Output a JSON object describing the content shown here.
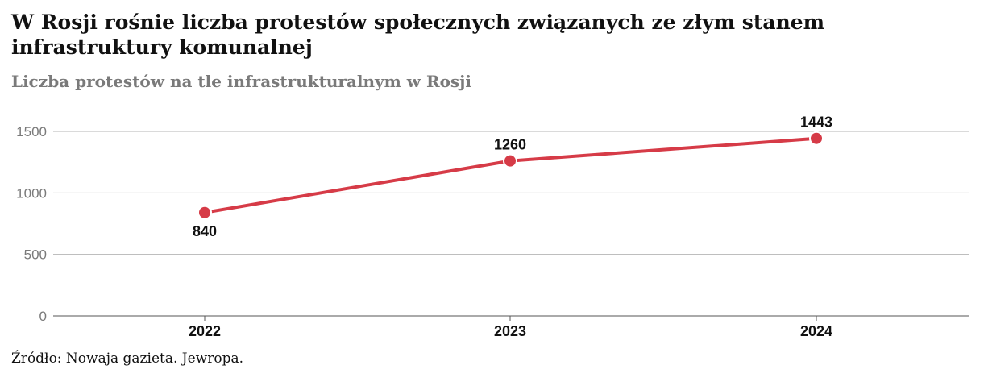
{
  "header": {
    "title": "W Rosji rośnie liczba protestów społecznych związanych ze złym stanem infrastruktury komunalnej",
    "subtitle": "Liczba protestów na tle infrastrukturalnym w Rosji"
  },
  "footer": {
    "source": "Źródło: Nowaja gazieta. Jewropa."
  },
  "chart_data": {
    "type": "line",
    "title": "W Rosji rośnie liczba protestów społecznych związanych ze złym stanem infrastruktury komunalnej",
    "subtitle": "Liczba protestów na tle infrastrukturalnym w Rosji",
    "categories": [
      "2022",
      "2023",
      "2024"
    ],
    "series": [
      {
        "values": [
          840,
          1260,
          1443
        ],
        "data_labels": [
          "840",
          "1260",
          "1443"
        ]
      }
    ],
    "yticks": [
      0,
      500,
      1000,
      1500
    ],
    "ytick_labels": [
      "0",
      "500",
      "1000",
      "1500"
    ],
    "ylim": [
      0,
      1500
    ],
    "grid": true,
    "legend": "none",
    "colors": {
      "line": "#d63b47",
      "grid": "#b5b5b5",
      "axis": "#555555"
    }
  }
}
